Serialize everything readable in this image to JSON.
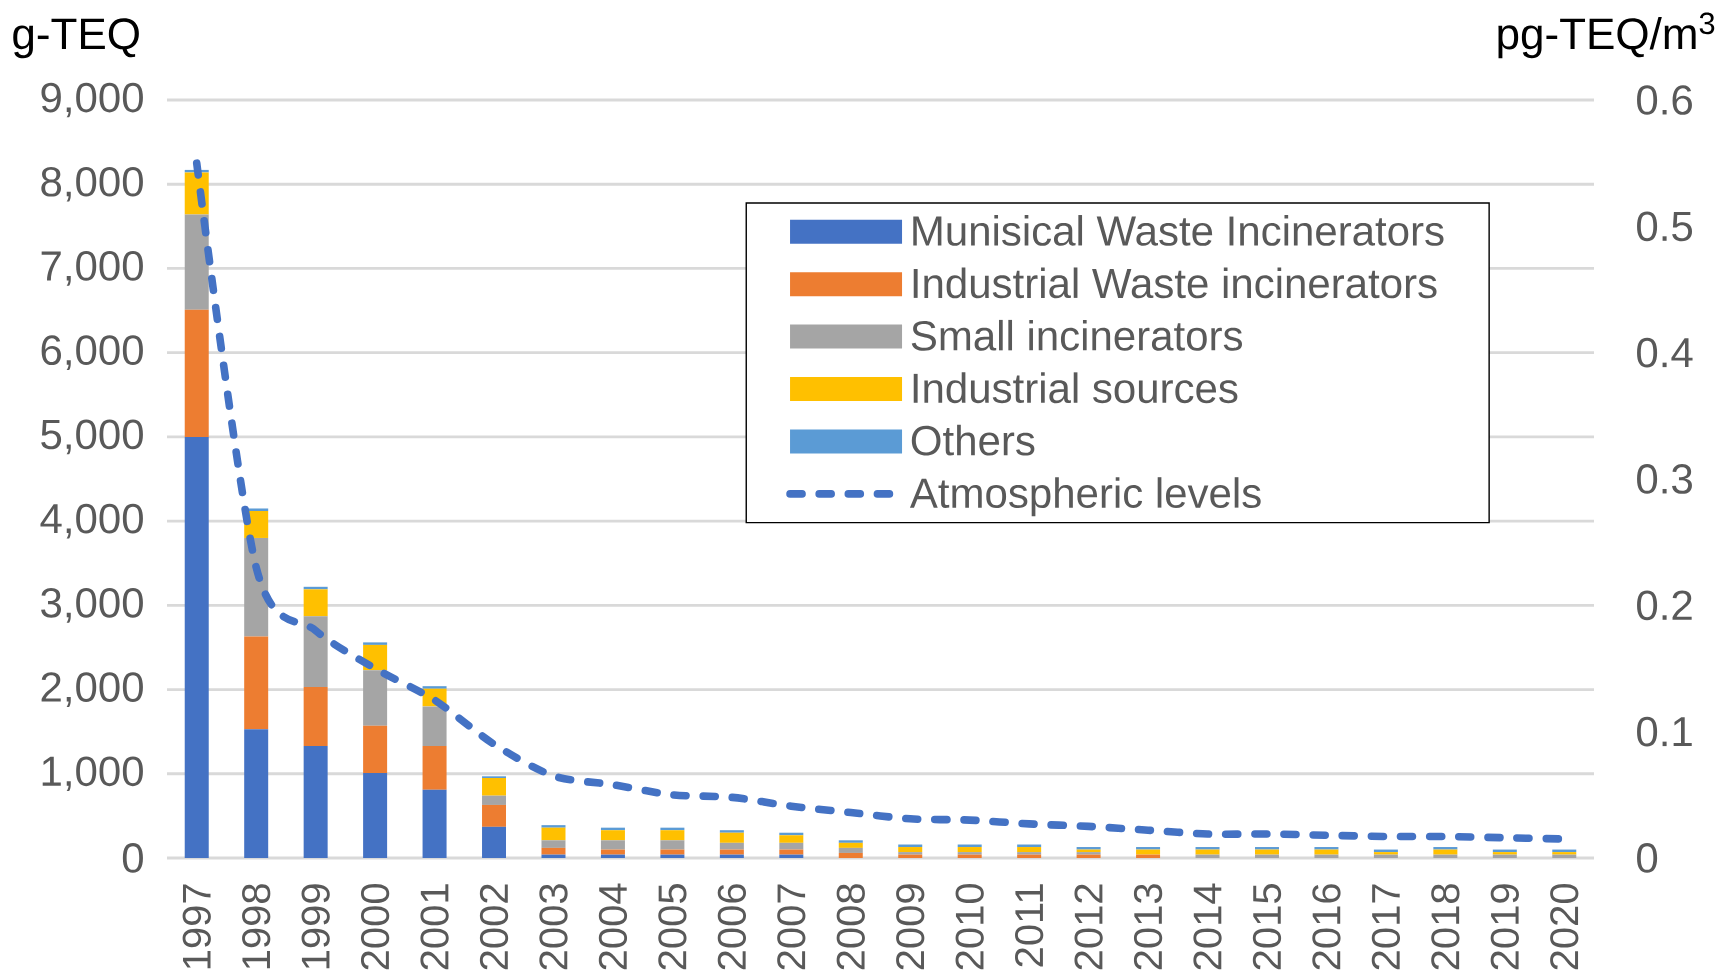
{
  "chart_data": {
    "type": "bar",
    "stacked": true,
    "categories": [
      "1997",
      "1998",
      "1999",
      "2000",
      "2001",
      "2002",
      "2003",
      "2004",
      "2005",
      "2006",
      "2007",
      "2008",
      "2009",
      "2010",
      "2011",
      "2012",
      "2013",
      "2014",
      "2015",
      "2016",
      "2017",
      "2018",
      "2019",
      "2020"
    ],
    "series": [
      {
        "name": "Munisical Waste Incinerators",
        "color": "#4472c4",
        "values": [
          5000,
          1530,
          1330,
          1010,
          810,
          370,
          40,
          40,
          40,
          40,
          40,
          0,
          0,
          0,
          0,
          0,
          0,
          0,
          0,
          0,
          0,
          0,
          0,
          0
        ]
      },
      {
        "name": "Industrial Waste incinerators",
        "color": "#ed7d31",
        "values": [
          1510,
          1100,
          700,
          560,
          520,
          260,
          80,
          60,
          60,
          60,
          60,
          60,
          40,
          40,
          40,
          40,
          40,
          0,
          0,
          0,
          0,
          0,
          0,
          0
        ]
      },
      {
        "name": "Small incinerators",
        "color": "#a5a5a5",
        "values": [
          1130,
          1170,
          840,
          660,
          470,
          110,
          90,
          110,
          110,
          80,
          80,
          60,
          30,
          30,
          30,
          30,
          0,
          40,
          40,
          40,
          40,
          40,
          40,
          40
        ]
      },
      {
        "name": "Industrial sources",
        "color": "#ffc000",
        "values": [
          500,
          320,
          320,
          300,
          210,
          210,
          150,
          120,
          120,
          120,
          90,
          60,
          60,
          60,
          60,
          30,
          60,
          60,
          60,
          60,
          30,
          60,
          30,
          30
        ]
      },
      {
        "name": "Others",
        "color": "#5b9bd5",
        "values": [
          30,
          30,
          30,
          30,
          30,
          20,
          30,
          30,
          30,
          30,
          30,
          30,
          30,
          30,
          30,
          30,
          30,
          30,
          30,
          30,
          30,
          30,
          30,
          30
        ]
      },
      {
        "name": "Atmospheric levels",
        "type": "line",
        "axis": "y2",
        "line_style": "dashed",
        "color": "#4472c4",
        "values": [
          0.55,
          0.23,
          0.18,
          0.15,
          0.125,
          0.09,
          0.065,
          0.058,
          0.05,
          0.048,
          0.041,
          0.036,
          0.031,
          0.03,
          0.027,
          0.025,
          0.022,
          0.019,
          0.019,
          0.018,
          0.017,
          0.017,
          0.016,
          0.015
        ]
      }
    ],
    "ylabel": "g-TEQ",
    "y2label": "pg-TEQ/m$^{3}$",
    "ylim": [
      0,
      9000
    ],
    "yticks": [
      0,
      {
        "value": 1000,
        "label": "1,000"
      },
      {
        "value": 2000,
        "label": "2,000"
      },
      {
        "value": 3000,
        "label": "3,000"
      },
      {
        "value": 4000,
        "label": "4,000"
      },
      {
        "value": 5000,
        "label": "5,000"
      },
      {
        "value": 6000,
        "label": "6,000"
      },
      {
        "value": 7000,
        "label": "7,000"
      },
      {
        "value": 8000,
        "label": "8,000"
      },
      {
        "value": 9000,
        "label": "9,000"
      }
    ],
    "y2lim": [
      0,
      0.6
    ],
    "y2ticks": [
      0,
      0.1,
      0.2,
      0.3,
      0.4,
      0.5,
      0.6
    ],
    "grid": "y",
    "legend": "top right"
  }
}
